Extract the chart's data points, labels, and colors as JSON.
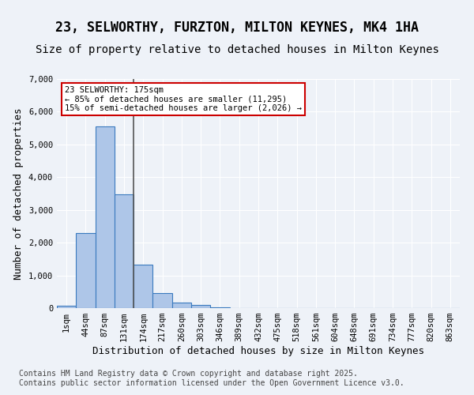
{
  "title": "23, SELWORTHY, FURZTON, MILTON KEYNES, MK4 1HA",
  "subtitle": "Size of property relative to detached houses in Milton Keynes",
  "xlabel": "Distribution of detached houses by size in Milton Keynes",
  "ylabel": "Number of detached properties",
  "bar_values": [
    75,
    2300,
    5550,
    3480,
    1320,
    460,
    175,
    90,
    35,
    0,
    0,
    0,
    0,
    0,
    0,
    0,
    0,
    0,
    0,
    0,
    0
  ],
  "bar_labels": [
    "1sqm",
    "44sqm",
    "87sqm",
    "131sqm",
    "174sqm",
    "217sqm",
    "260sqm",
    "303sqm",
    "346sqm",
    "389sqm",
    "432sqm",
    "475sqm",
    "518sqm",
    "561sqm",
    "604sqm",
    "648sqm",
    "691sqm",
    "734sqm",
    "777sqm",
    "820sqm",
    "863sqm"
  ],
  "bar_color": "#aec6e8",
  "bar_edge_color": "#3a7abf",
  "vline_color": "#555555",
  "annotation_text": "23 SELWORTHY: 175sqm\n← 85% of detached houses are smaller (11,295)\n15% of semi-detached houses are larger (2,026) →",
  "annotation_box_color": "#ffffff",
  "annotation_box_edge": "#cc0000",
  "ylim": [
    0,
    7000
  ],
  "yticks": [
    0,
    1000,
    2000,
    3000,
    4000,
    5000,
    6000,
    7000
  ],
  "bg_color": "#eef2f8",
  "plot_bg_color": "#eef2f8",
  "footer_text": "Contains HM Land Registry data © Crown copyright and database right 2025.\nContains public sector information licensed under the Open Government Licence v3.0.",
  "title_fontsize": 12,
  "subtitle_fontsize": 10,
  "xlabel_fontsize": 9,
  "ylabel_fontsize": 9,
  "tick_fontsize": 7.5,
  "footer_fontsize": 7
}
